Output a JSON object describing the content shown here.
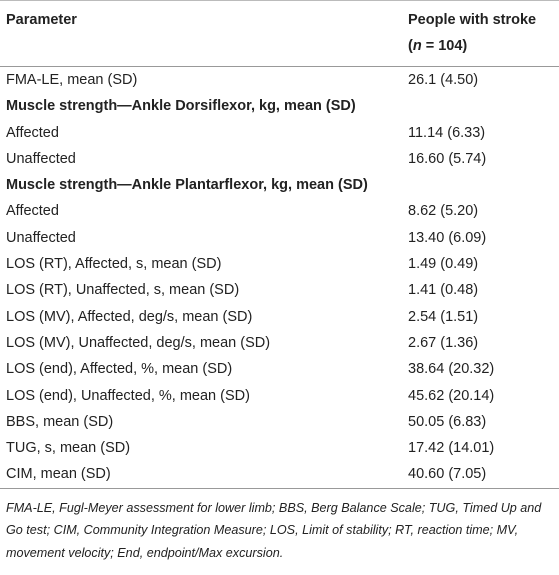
{
  "header": {
    "parameter": "Parameter",
    "group_line1": "People with stroke",
    "group_open": "(",
    "group_n": "n",
    "group_close": " = 104)"
  },
  "table": {
    "rows": [
      [
        "FMA-LE, mean (SD)",
        "26.1 (4.50)"
      ],
      [
        "Muscle strength—Ankle Dorsiflexor, kg, mean (SD)"
      ],
      [
        "Affected",
        "11.14 (6.33)"
      ],
      [
        "Unaffected",
        "16.60 (5.74)"
      ],
      [
        "Muscle strength—Ankle Plantarflexor, kg, mean (SD)"
      ],
      [
        "Affected",
        "8.62 (5.20)"
      ],
      [
        "Unaffected",
        "13.40 (6.09)"
      ],
      [
        "LOS (RT), Affected, s, mean (SD)",
        "1.49 (0.49)"
      ],
      [
        "LOS (RT), Unaffected, s, mean (SD)",
        "1.41 (0.48)"
      ],
      [
        "LOS (MV), Affected, deg/s, mean (SD)",
        "2.54 (1.51)"
      ],
      [
        "LOS (MV), Unaffected, deg/s, mean (SD)",
        "2.67 (1.36)"
      ],
      [
        "LOS (end), Affected, %, mean (SD)",
        "38.64 (20.32)"
      ],
      [
        "LOS (end), Unaffected, %, mean (SD)",
        "45.62 (20.14)"
      ],
      [
        "BBS, mean (SD)",
        "50.05 (6.83)"
      ],
      [
        "TUG, s, mean (SD)",
        "17.42 (14.01)"
      ],
      [
        "CIM, mean (SD)",
        "40.60 (7.05)"
      ]
    ]
  },
  "footnote": "FMA-LE, Fugl-Meyer assessment for lower limb; BBS, Berg Balance Scale; TUG, Timed Up and Go test; CIM, Community Integration Measure; LOS, Limit of stability; RT, reaction time; MV, movement velocity; End, endpoint/Max excursion."
}
